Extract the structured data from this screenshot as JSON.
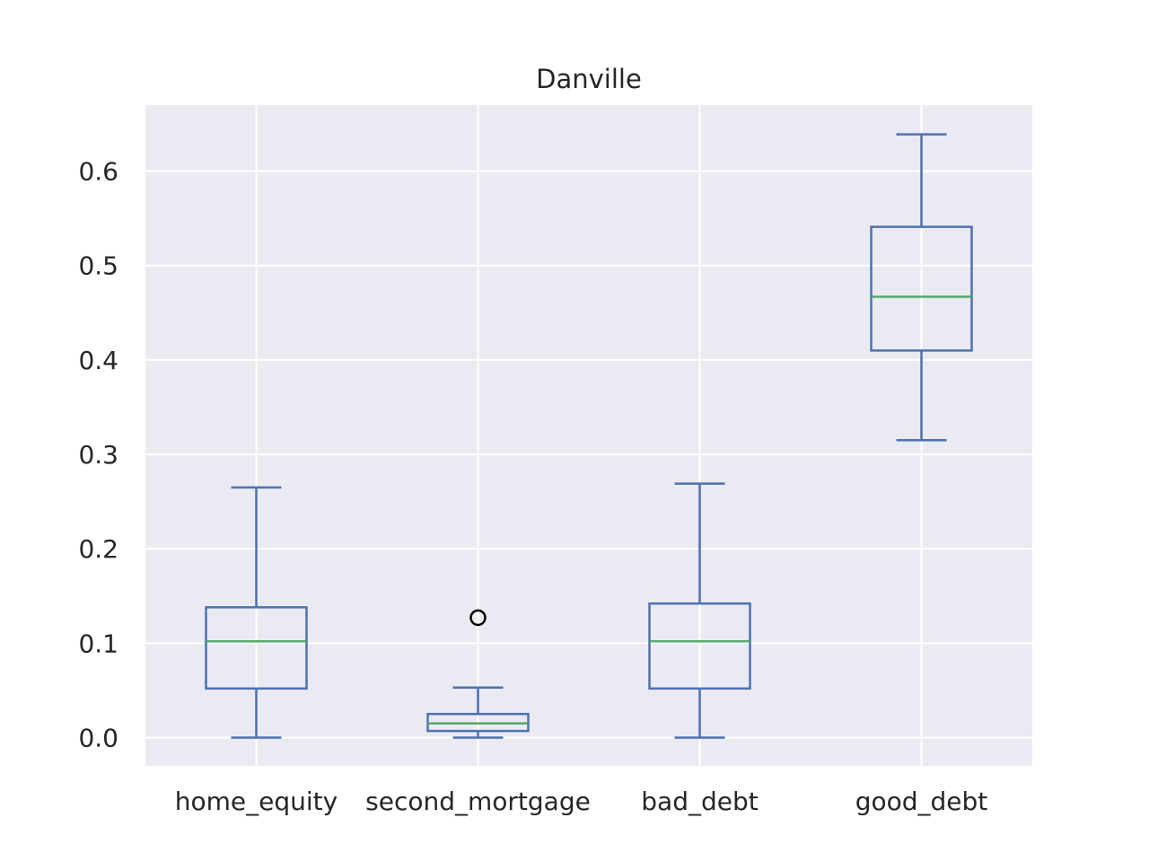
{
  "chart_data": {
    "type": "box",
    "title": "Danville",
    "xlabel": "",
    "ylabel": "",
    "ylim": [
      -0.03,
      0.67
    ],
    "yticks": [
      0.0,
      0.1,
      0.2,
      0.3,
      0.4,
      0.5,
      0.6
    ],
    "ytick_labels": [
      "0.0",
      "0.1",
      "0.2",
      "0.3",
      "0.4",
      "0.5",
      "0.6"
    ],
    "grid": true,
    "categories": [
      "home_equity",
      "second_mortgage",
      "bad_debt",
      "good_debt"
    ],
    "boxes": [
      {
        "category": "home_equity",
        "whisker_low": 0.0,
        "q1": 0.052,
        "median": 0.102,
        "q3": 0.138,
        "whisker_high": 0.265,
        "outliers": []
      },
      {
        "category": "second_mortgage",
        "whisker_low": 0.0,
        "q1": 0.007,
        "median": 0.015,
        "q3": 0.025,
        "whisker_high": 0.053,
        "outliers": [
          0.127
        ]
      },
      {
        "category": "bad_debt",
        "whisker_low": 0.0,
        "q1": 0.052,
        "median": 0.102,
        "q3": 0.142,
        "whisker_high": 0.269,
        "outliers": []
      },
      {
        "category": "good_debt",
        "whisker_low": 0.315,
        "q1": 0.41,
        "median": 0.467,
        "q3": 0.541,
        "whisker_high": 0.639,
        "outliers": []
      }
    ],
    "colors": {
      "plot_background": "#eaeaf2",
      "grid": "#ffffff",
      "box": "#4c72b0",
      "median": "#55a868",
      "outlier": "#000000",
      "text": "#262626"
    }
  }
}
